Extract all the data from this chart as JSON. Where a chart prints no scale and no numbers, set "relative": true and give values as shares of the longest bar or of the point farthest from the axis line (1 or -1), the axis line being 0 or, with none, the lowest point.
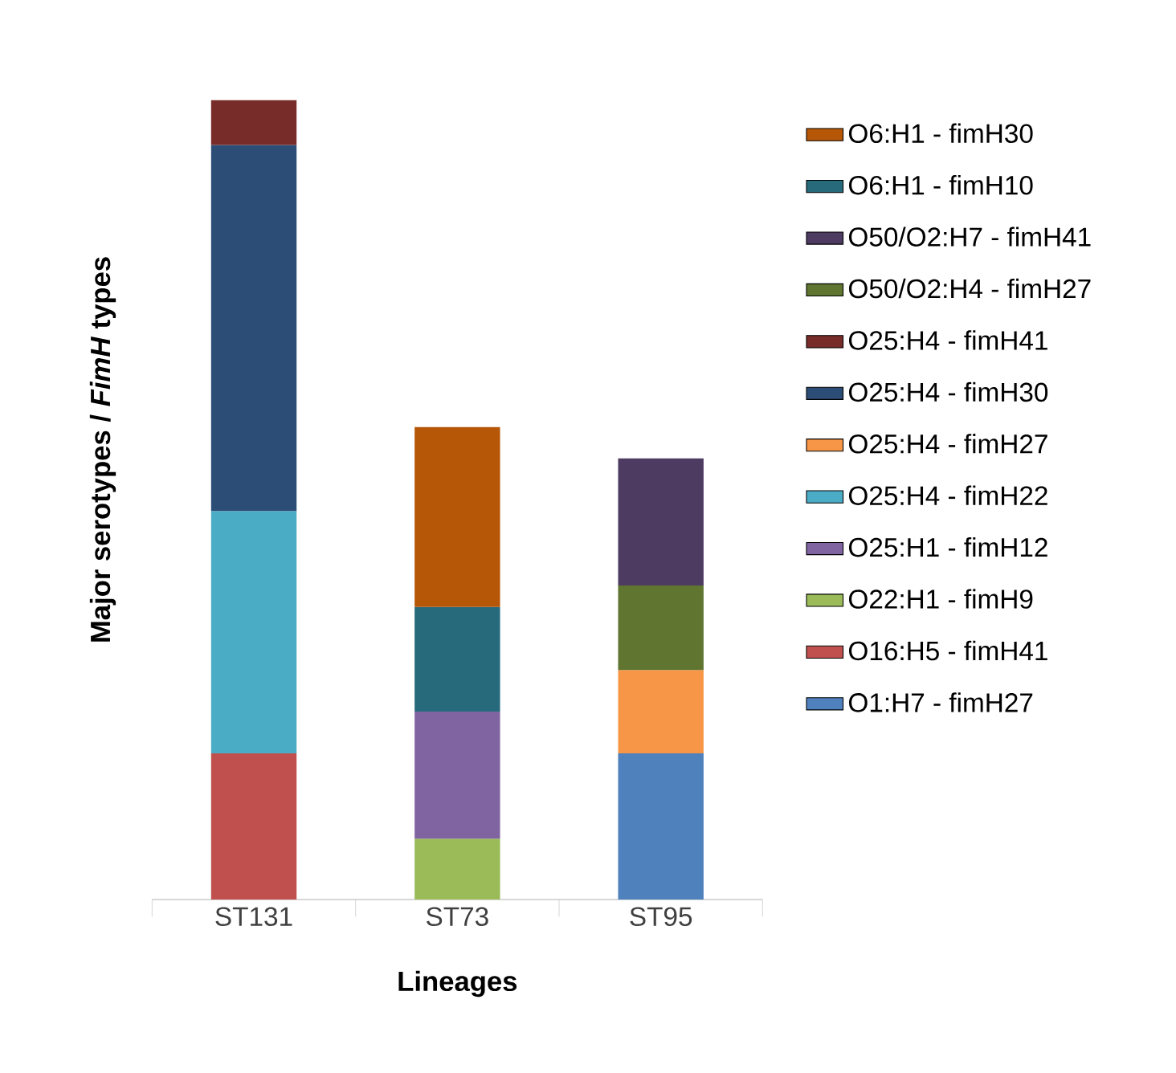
{
  "chart_data": {
    "type": "bar",
    "stacked": true,
    "relative": true,
    "legend": "right",
    "xlabel": "Lineages",
    "ylabel": "Major serotypes / *FimH* types",
    "categories": [
      "ST131",
      "ST73",
      "ST95"
    ],
    "series": [
      {
        "name": "O1:H7 - fimH27",
        "color": "#4f81bd",
        "values": [
          null,
          null,
          0.183
        ]
      },
      {
        "name": "O16:H5 - fimH41",
        "color": "#c0504d",
        "values": [
          0.183,
          null,
          null
        ]
      },
      {
        "name": "O22:H1 - fimH9",
        "color": "#9bbb59",
        "values": [
          null,
          0.076,
          null
        ]
      },
      {
        "name": "O25:H1 - fimH12",
        "color": "#8064a2",
        "values": [
          null,
          0.159,
          null
        ]
      },
      {
        "name": "O25:H4 - fimH22",
        "color": "#4bacc6",
        "values": [
          0.303,
          null,
          null
        ]
      },
      {
        "name": "O25:H4 - fimH27",
        "color": "#f79646",
        "values": [
          null,
          null,
          0.104
        ]
      },
      {
        "name": "O25:H4 - fimH30",
        "color": "#2c4d75",
        "values": [
          0.458,
          null,
          null
        ]
      },
      {
        "name": "O25:H4 - fimH41",
        "color": "#772c2a",
        "values": [
          0.056,
          null,
          null
        ]
      },
      {
        "name": "O50/O2:H4 - fimH27",
        "color": "#5f7530",
        "values": [
          null,
          null,
          0.106
        ]
      },
      {
        "name": "O50/O2:H7 - fimH41",
        "color": "#4d3b62",
        "values": [
          null,
          null,
          0.159
        ]
      },
      {
        "name": "O6:H1 - fimH10",
        "color": "#276a7c",
        "values": [
          null,
          0.131,
          null
        ]
      },
      {
        "name": "O6:H1 - fimH30",
        "color": "#b65708",
        "values": [
          null,
          0.225,
          null
        ]
      }
    ]
  }
}
